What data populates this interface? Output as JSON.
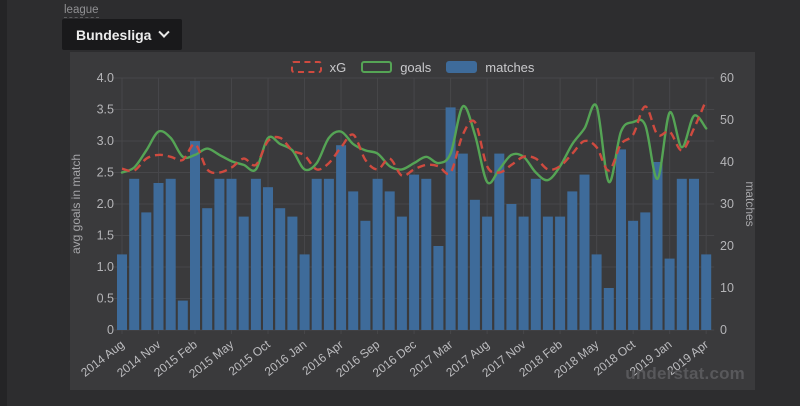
{
  "controls": {
    "label": "league",
    "selected": "Bundesliga"
  },
  "watermark": "understat.com",
  "colors": {
    "page": "#2d2d2f",
    "panel": "#3a3a3c",
    "grid": "#47474a",
    "bar": "#3e6b9a",
    "goals": "#55a455",
    "xg": "#cf4a3f",
    "tick_text": "#b4b4b7",
    "axis_label_text": "#a6a6a9",
    "x_tick_text": "#bcbcbf"
  },
  "chart_data": {
    "type": "combo",
    "title": "",
    "grid": true,
    "legend_position": "top-center",
    "x_categories": [
      "2014 Aug",
      "2014 Sep",
      "2014 Oct",
      "2014 Nov",
      "2014 Dec",
      "2015 Jan",
      "2015 Feb",
      "2015 Mar",
      "2015 Apr",
      "2015 May",
      "2015 Aug",
      "2015 Sep",
      "2015 Oct",
      "2015 Nov",
      "2015 Dec",
      "2016 Jan",
      "2016 Feb",
      "2016 Mar",
      "2016 Apr",
      "2016 May",
      "2016 Aug",
      "2016 Sep",
      "2016 Oct",
      "2016 Nov",
      "2016 Dec",
      "2017 Jan",
      "2017 Feb",
      "2017 Mar",
      "2017 Apr",
      "2017 May",
      "2017 Aug",
      "2017 Sep",
      "2017 Oct",
      "2017 Nov",
      "2017 Dec",
      "2018 Jan",
      "2018 Feb",
      "2018 Mar",
      "2018 Apr",
      "2018 May",
      "2018 Aug",
      "2018 Sep",
      "2018 Oct",
      "2018 Nov",
      "2018 Dec",
      "2019 Jan",
      "2019 Feb",
      "2019 Mar",
      "2019 Apr"
    ],
    "x_tick_labels": [
      "2014 Aug",
      "2014 Nov",
      "2015 Feb",
      "2015 May",
      "2015 Oct",
      "2016 Jan",
      "2016 Apr",
      "2016 Sep",
      "2016 Dec",
      "2017 Mar",
      "2017 Aug",
      "2017 Nov",
      "2018 Feb",
      "2018 May",
      "2018 Oct",
      "2019 Jan",
      "2019 Apr"
    ],
    "x_tick_every": 3,
    "series": [
      {
        "name": "xG",
        "kind": "line",
        "style": "dashed",
        "axis": "left",
        "color": "#cf4a3f",
        "values": [
          2.56,
          2.53,
          2.72,
          2.78,
          2.75,
          2.7,
          2.95,
          2.55,
          2.5,
          2.58,
          2.72,
          2.62,
          3.0,
          3.05,
          2.85,
          2.77,
          2.55,
          2.65,
          2.9,
          3.1,
          2.7,
          2.55,
          2.72,
          2.45,
          2.55,
          2.62,
          2.6,
          2.5,
          3.1,
          3.3,
          2.6,
          2.5,
          2.62,
          2.75,
          2.72,
          2.55,
          2.6,
          2.8,
          3.0,
          2.9,
          2.53,
          2.95,
          3.1,
          3.55,
          3.1,
          3.15,
          2.85,
          3.2,
          3.65
        ]
      },
      {
        "name": "goals",
        "kind": "line",
        "style": "solid",
        "axis": "left",
        "color": "#55a455",
        "values": [
          2.5,
          2.58,
          2.85,
          3.15,
          3.05,
          2.75,
          2.78,
          2.88,
          2.78,
          2.68,
          2.62,
          2.55,
          3.05,
          2.95,
          2.85,
          2.55,
          2.65,
          3.05,
          3.15,
          2.95,
          2.85,
          2.8,
          2.6,
          2.55,
          2.65,
          2.75,
          2.65,
          2.8,
          3.55,
          3.1,
          2.35,
          2.55,
          2.78,
          2.75,
          2.5,
          2.38,
          2.6,
          2.95,
          3.2,
          3.55,
          2.35,
          3.15,
          3.3,
          3.25,
          2.4,
          3.45,
          2.9,
          3.4,
          3.2
        ]
      },
      {
        "name": "matches",
        "kind": "bar",
        "axis": "right",
        "color": "#3e6b9a",
        "values": [
          18,
          36,
          28,
          35,
          36,
          7,
          45,
          29,
          36,
          36,
          27,
          36,
          34,
          29,
          27,
          18,
          36,
          36,
          44,
          33,
          26,
          36,
          33,
          27,
          37,
          36,
          20,
          53,
          42,
          31,
          27,
          42,
          30,
          27,
          36,
          27,
          27,
          33,
          37,
          18,
          10,
          43,
          26,
          28,
          40,
          17,
          36,
          36,
          18
        ]
      }
    ],
    "left_axis": {
      "label": "avg goals in match",
      "min": 0,
      "max": 4,
      "ticks": [
        {
          "v": 0,
          "label": "0"
        },
        {
          "v": 0.5,
          "label": "0.5"
        },
        {
          "v": 1,
          "label": "1.0"
        },
        {
          "v": 1.5,
          "label": "1.5"
        },
        {
          "v": 2,
          "label": "2.0"
        },
        {
          "v": 2.5,
          "label": "2.5"
        },
        {
          "v": 3,
          "label": "3.0"
        },
        {
          "v": 3.5,
          "label": "3.5"
        },
        {
          "v": 4,
          "label": "4.0"
        }
      ]
    },
    "right_axis": {
      "label": "matches",
      "min": 0,
      "max": 60,
      "ticks": [
        {
          "v": 0,
          "label": "0"
        },
        {
          "v": 10,
          "label": "10"
        },
        {
          "v": 20,
          "label": "20"
        },
        {
          "v": 30,
          "label": "30"
        },
        {
          "v": 40,
          "label": "40"
        },
        {
          "v": 50,
          "label": "50"
        },
        {
          "v": 60,
          "label": "60"
        }
      ]
    }
  }
}
